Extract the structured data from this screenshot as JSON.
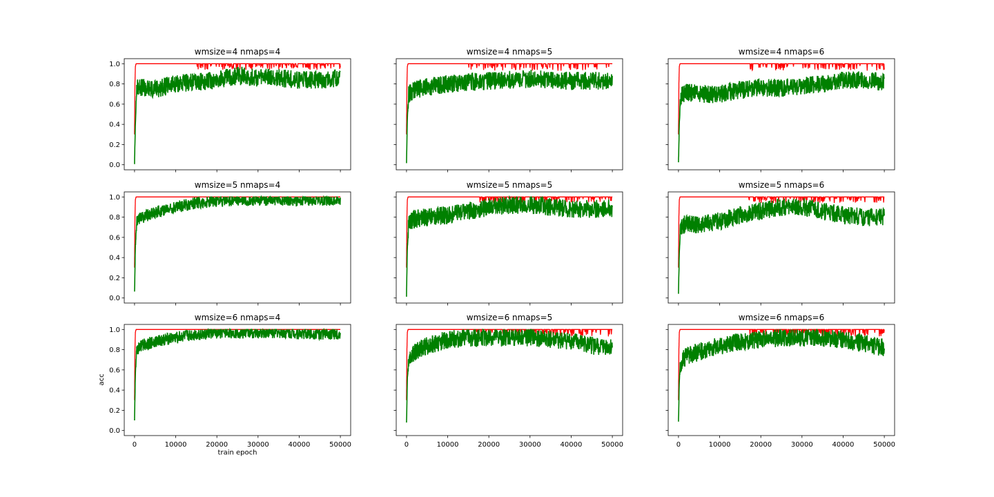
{
  "figure": {
    "ylabel": "acc",
    "xlabel": "train epoch"
  },
  "colors": {
    "train": "#ff0000",
    "test": "#008000",
    "axes": "#000000"
  },
  "chart_data": [
    {
      "type": "line",
      "title": "wmsize=4 nmaps=4",
      "xlim": [
        -2500,
        52500
      ],
      "ylim": [
        -0.05,
        1.05
      ],
      "xticks": [
        0,
        10000,
        20000,
        30000,
        40000,
        50000
      ],
      "yticks": [
        0.0,
        0.2,
        0.4,
        0.6,
        0.8,
        1.0
      ],
      "series": [
        {
          "key": "train",
          "x": [
            0,
            100,
            200,
            300,
            400,
            500,
            15000,
            25000,
            35000,
            45000,
            50000
          ],
          "y": [
            0.3,
            0.8,
            0.97,
            0.99,
            1.0,
            1.0,
            1.0,
            1.0,
            1.0,
            1.0,
            1.0
          ],
          "dips_from": 15000,
          "dip_depth": 0.06
        },
        {
          "key": "test",
          "x": [
            0,
            200,
            500,
            1000,
            2000,
            5000,
            10000,
            15000,
            20000,
            25000,
            30000,
            35000,
            40000,
            45000,
            50000
          ],
          "y": [
            0.02,
            0.4,
            0.75,
            0.78,
            0.76,
            0.75,
            0.8,
            0.82,
            0.84,
            0.88,
            0.86,
            0.86,
            0.84,
            0.84,
            0.86
          ],
          "band": 0.09
        }
      ]
    },
    {
      "type": "line",
      "title": "wmsize=4 nmaps=5",
      "xlim": [
        -2500,
        52500
      ],
      "ylim": [
        -0.05,
        1.05
      ],
      "xticks": [
        0,
        10000,
        20000,
        30000,
        40000,
        50000
      ],
      "yticks": [
        0.0,
        0.2,
        0.4,
        0.6,
        0.8,
        1.0
      ],
      "series": [
        {
          "key": "train",
          "x": [
            0,
            100,
            200,
            300,
            400,
            500,
            15000,
            25000,
            35000,
            45000,
            50000
          ],
          "y": [
            0.3,
            0.8,
            0.97,
            0.99,
            1.0,
            1.0,
            1.0,
            1.0,
            1.0,
            1.0,
            1.0
          ],
          "dips_from": 15000,
          "dip_depth": 0.07
        },
        {
          "key": "test",
          "x": [
            0,
            200,
            500,
            1000,
            2000,
            5000,
            10000,
            15000,
            20000,
            25000,
            30000,
            35000,
            40000,
            45000,
            50000
          ],
          "y": [
            0.02,
            0.45,
            0.7,
            0.72,
            0.74,
            0.77,
            0.8,
            0.82,
            0.83,
            0.84,
            0.85,
            0.84,
            0.83,
            0.83,
            0.83
          ],
          "band": 0.09
        }
      ]
    },
    {
      "type": "line",
      "title": "wmsize=4 nmaps=6",
      "xlim": [
        -2500,
        52500
      ],
      "ylim": [
        -0.05,
        1.05
      ],
      "xticks": [
        0,
        10000,
        20000,
        30000,
        40000,
        50000
      ],
      "yticks": [
        0.0,
        0.2,
        0.4,
        0.6,
        0.8,
        1.0
      ],
      "series": [
        {
          "key": "train",
          "x": [
            0,
            100,
            200,
            300,
            400,
            500,
            15000,
            25000,
            35000,
            45000,
            50000
          ],
          "y": [
            0.3,
            0.8,
            0.97,
            0.99,
            1.0,
            1.0,
            1.0,
            1.0,
            1.0,
            1.0,
            1.0
          ],
          "dips_from": 17000,
          "dip_depth": 0.07
        },
        {
          "key": "test",
          "x": [
            0,
            200,
            500,
            1000,
            2000,
            5000,
            10000,
            15000,
            20000,
            25000,
            30000,
            35000,
            40000,
            45000,
            50000
          ],
          "y": [
            0.02,
            0.4,
            0.68,
            0.7,
            0.72,
            0.7,
            0.7,
            0.74,
            0.76,
            0.76,
            0.78,
            0.8,
            0.84,
            0.84,
            0.82
          ],
          "band": 0.09
        }
      ]
    },
    {
      "type": "line",
      "title": "wmsize=5 nmaps=4",
      "xlim": [
        -2500,
        52500
      ],
      "ylim": [
        -0.05,
        1.05
      ],
      "xticks": [
        0,
        10000,
        20000,
        30000,
        40000,
        50000
      ],
      "yticks": [
        0.0,
        0.2,
        0.4,
        0.6,
        0.8,
        1.0
      ],
      "series": [
        {
          "key": "train",
          "x": [
            0,
            100,
            200,
            300,
            400,
            500,
            15000,
            25000,
            35000,
            45000,
            50000
          ],
          "y": [
            0.3,
            0.8,
            0.97,
            0.99,
            1.0,
            1.0,
            1.0,
            1.0,
            1.0,
            1.0,
            1.0
          ],
          "dips_from": 60000,
          "dip_depth": 0.0
        },
        {
          "key": "test",
          "x": [
            0,
            200,
            500,
            1000,
            2000,
            5000,
            10000,
            15000,
            20000,
            25000,
            30000,
            35000,
            40000,
            45000,
            50000
          ],
          "y": [
            0.05,
            0.5,
            0.75,
            0.78,
            0.8,
            0.85,
            0.9,
            0.94,
            0.96,
            0.97,
            0.97,
            0.97,
            0.97,
            0.97,
            0.97
          ],
          "band": 0.06
        }
      ]
    },
    {
      "type": "line",
      "title": "wmsize=5 nmaps=5",
      "xlim": [
        -2500,
        52500
      ],
      "ylim": [
        -0.05,
        1.05
      ],
      "xticks": [
        0,
        10000,
        20000,
        30000,
        40000,
        50000
      ],
      "yticks": [
        0.0,
        0.2,
        0.4,
        0.6,
        0.8,
        1.0
      ],
      "series": [
        {
          "key": "train",
          "x": [
            0,
            100,
            200,
            300,
            400,
            500,
            15000,
            25000,
            35000,
            45000,
            50000
          ],
          "y": [
            0.3,
            0.8,
            0.97,
            0.99,
            1.0,
            1.0,
            1.0,
            1.0,
            1.0,
            1.0,
            1.0
          ],
          "dips_from": 17000,
          "dip_depth": 0.06
        },
        {
          "key": "test",
          "x": [
            0,
            200,
            500,
            1000,
            2000,
            5000,
            10000,
            15000,
            20000,
            25000,
            30000,
            35000,
            40000,
            45000,
            50000
          ],
          "y": [
            0.03,
            0.5,
            0.72,
            0.76,
            0.78,
            0.8,
            0.82,
            0.86,
            0.9,
            0.92,
            0.92,
            0.9,
            0.88,
            0.88,
            0.89
          ],
          "band": 0.09
        }
      ]
    },
    {
      "type": "line",
      "title": "wmsize=5 nmaps=6",
      "xlim": [
        -2500,
        52500
      ],
      "ylim": [
        -0.05,
        1.05
      ],
      "xticks": [
        0,
        10000,
        20000,
        30000,
        40000,
        50000
      ],
      "yticks": [
        0.0,
        0.2,
        0.4,
        0.6,
        0.8,
        1.0
      ],
      "series": [
        {
          "key": "train",
          "x": [
            0,
            100,
            200,
            300,
            400,
            500,
            15000,
            25000,
            35000,
            45000,
            50000
          ],
          "y": [
            0.3,
            0.8,
            0.97,
            0.99,
            1.0,
            1.0,
            1.0,
            1.0,
            1.0,
            1.0,
            1.0
          ],
          "dips_from": 17000,
          "dip_depth": 0.06
        },
        {
          "key": "test",
          "x": [
            0,
            200,
            500,
            1000,
            2000,
            5000,
            10000,
            15000,
            20000,
            25000,
            30000,
            35000,
            40000,
            45000,
            50000
          ],
          "y": [
            0.05,
            0.45,
            0.7,
            0.72,
            0.74,
            0.72,
            0.76,
            0.82,
            0.86,
            0.9,
            0.9,
            0.86,
            0.82,
            0.8,
            0.8
          ],
          "band": 0.09
        }
      ]
    },
    {
      "type": "line",
      "title": "wmsize=6 nmaps=4",
      "xlim": [
        -2500,
        52500
      ],
      "ylim": [
        -0.05,
        1.05
      ],
      "xticks": [
        0,
        10000,
        20000,
        30000,
        40000,
        50000
      ],
      "yticks": [
        0.0,
        0.2,
        0.4,
        0.6,
        0.8,
        1.0
      ],
      "series": [
        {
          "key": "train",
          "x": [
            0,
            100,
            200,
            300,
            400,
            500,
            15000,
            25000,
            35000,
            45000,
            50000
          ],
          "y": [
            0.3,
            0.8,
            0.97,
            0.99,
            1.0,
            1.0,
            1.0,
            1.0,
            1.0,
            1.0,
            1.0
          ],
          "dips_from": 60000,
          "dip_depth": 0.0
        },
        {
          "key": "test",
          "x": [
            0,
            200,
            500,
            1000,
            2000,
            5000,
            10000,
            15000,
            20000,
            25000,
            30000,
            35000,
            40000,
            45000,
            50000
          ],
          "y": [
            0.1,
            0.55,
            0.78,
            0.82,
            0.85,
            0.88,
            0.92,
            0.95,
            0.97,
            0.97,
            0.97,
            0.97,
            0.96,
            0.96,
            0.96
          ],
          "band": 0.06
        }
      ]
    },
    {
      "type": "line",
      "title": "wmsize=6 nmaps=5",
      "xlim": [
        -2500,
        52500
      ],
      "ylim": [
        -0.05,
        1.05
      ],
      "xticks": [
        0,
        10000,
        20000,
        30000,
        40000,
        50000
      ],
      "yticks": [
        0.0,
        0.2,
        0.4,
        0.6,
        0.8,
        1.0
      ],
      "series": [
        {
          "key": "train",
          "x": [
            0,
            100,
            200,
            300,
            400,
            500,
            15000,
            25000,
            35000,
            45000,
            50000
          ],
          "y": [
            0.3,
            0.8,
            0.97,
            0.99,
            1.0,
            1.0,
            1.0,
            1.0,
            1.0,
            1.0,
            1.0
          ],
          "dips_from": 17000,
          "dip_depth": 0.07
        },
        {
          "key": "test",
          "x": [
            0,
            200,
            500,
            1000,
            2000,
            5000,
            10000,
            15000,
            20000,
            25000,
            30000,
            35000,
            40000,
            45000,
            50000
          ],
          "y": [
            0.07,
            0.5,
            0.7,
            0.74,
            0.78,
            0.84,
            0.9,
            0.92,
            0.92,
            0.92,
            0.92,
            0.9,
            0.88,
            0.84,
            0.82
          ],
          "band": 0.09
        }
      ]
    },
    {
      "type": "line",
      "title": "wmsize=6 nmaps=6",
      "xlim": [
        -2500,
        52500
      ],
      "ylim": [
        -0.05,
        1.05
      ],
      "xticks": [
        0,
        10000,
        20000,
        30000,
        40000,
        50000
      ],
      "yticks": [
        0.0,
        0.2,
        0.4,
        0.6,
        0.8,
        1.0
      ],
      "series": [
        {
          "key": "train",
          "x": [
            0,
            100,
            200,
            300,
            400,
            500,
            15000,
            25000,
            35000,
            45000,
            50000
          ],
          "y": [
            0.3,
            0.8,
            0.97,
            0.99,
            1.0,
            1.0,
            1.0,
            1.0,
            1.0,
            1.0,
            1.0
          ],
          "dips_from": 17000,
          "dip_depth": 0.07
        },
        {
          "key": "test",
          "x": [
            0,
            200,
            500,
            1000,
            2000,
            5000,
            10000,
            15000,
            20000,
            25000,
            30000,
            35000,
            40000,
            45000,
            50000
          ],
          "y": [
            0.07,
            0.5,
            0.66,
            0.7,
            0.74,
            0.78,
            0.84,
            0.88,
            0.9,
            0.92,
            0.92,
            0.92,
            0.9,
            0.86,
            0.82
          ],
          "band": 0.09
        }
      ]
    }
  ]
}
